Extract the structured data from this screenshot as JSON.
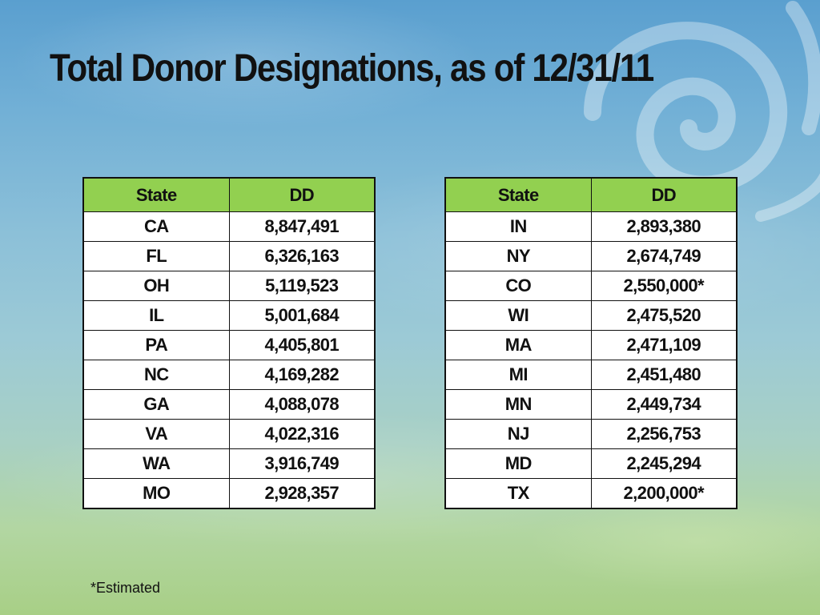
{
  "slide": {
    "title": "Total Donor Designations, as of 12/31/11",
    "footnote": "*Estimated"
  },
  "tables": [
    {
      "headers": [
        "State",
        "DD"
      ],
      "rows": [
        [
          "CA",
          "8,847,491"
        ],
        [
          "FL",
          "6,326,163"
        ],
        [
          "OH",
          "5,119,523"
        ],
        [
          "IL",
          "5,001,684"
        ],
        [
          "PA",
          "4,405,801"
        ],
        [
          "NC",
          "4,169,282"
        ],
        [
          "GA",
          "4,088,078"
        ],
        [
          "VA",
          "4,022,316"
        ],
        [
          "WA",
          "3,916,749"
        ],
        [
          "MO",
          "2,928,357"
        ]
      ]
    },
    {
      "headers": [
        "State",
        "DD"
      ],
      "rows": [
        [
          "IN",
          "2,893,380"
        ],
        [
          "NY",
          "2,674,749"
        ],
        [
          "CO",
          "2,550,000*"
        ],
        [
          "WI",
          "2,475,520"
        ],
        [
          "MA",
          "2,471,109"
        ],
        [
          "MI",
          "2,451,480"
        ],
        [
          "MN",
          "2,449,734"
        ],
        [
          "NJ",
          "2,256,753"
        ],
        [
          "MD",
          "2,245,294"
        ],
        [
          "TX",
          "2,200,000*"
        ]
      ]
    }
  ],
  "colors": {
    "header_fill": "#92d050",
    "text": "#111111"
  }
}
